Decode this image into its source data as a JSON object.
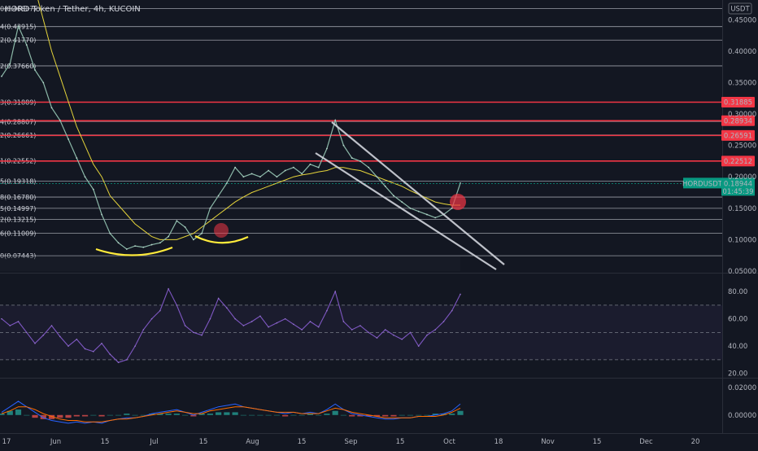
{
  "chart_data": {
    "type": "line",
    "title": "HORD Token / Tether, 4h, KUCOIN",
    "currency_badge": "USDT",
    "symbol_badge": "HORDUSDT",
    "current_price": "0.18944",
    "countdown": "01:45:39",
    "price_axis": {
      "ticks": [
        "0.45000",
        "0.40000",
        "0.35000",
        "0.30000",
        "0.25000",
        "0.20000",
        "0.15000",
        "0.10000",
        "0.05000"
      ],
      "ylim": [
        0.05,
        0.475
      ]
    },
    "fib_levels": [
      {
        "label": "0(0.46807)",
        "value": 0.46807
      },
      {
        "label": "4(0.43915)",
        "value": 0.43915
      },
      {
        "label": "2(0.41770)",
        "value": 0.4177
      },
      {
        "label": "2(0.37660)",
        "value": 0.3766
      },
      {
        "label": "3(0.31889)",
        "value": 0.31889
      },
      {
        "label": "4(0.28807)",
        "value": 0.28807
      },
      {
        "label": "2(0.26661)",
        "value": 0.26661
      },
      {
        "label": "1(0.22552)",
        "value": 0.22552
      },
      {
        "label": "5(0.19318)",
        "value": 0.19318
      },
      {
        "label": "8(0.16780)",
        "value": 0.1678
      },
      {
        "label": "5(0.14997)",
        "value": 0.14997
      },
      {
        "label": "2(0.13215)",
        "value": 0.13215
      },
      {
        "label": "6(0.11009)",
        "value": 0.11009
      },
      {
        "label": "0(0.07443)",
        "value": 0.07443
      }
    ],
    "red_levels": [
      {
        "label": "0.31885",
        "value": 0.31885
      },
      {
        "label": "0.28934",
        "value": 0.28934
      },
      {
        "label": "0.26591",
        "value": 0.26591
      },
      {
        "label": "0.22512",
        "value": 0.22512
      }
    ],
    "x_axis": {
      "ticks": [
        "17",
        "Jun",
        "15",
        "Jul",
        "15",
        "Aug",
        "15",
        "Sep",
        "15",
        "Oct",
        "18",
        "Nov",
        "15",
        "Dec",
        "20"
      ]
    },
    "series": [
      {
        "name": "price",
        "values": [
          0.36,
          0.38,
          0.44,
          0.41,
          0.37,
          0.35,
          0.31,
          0.29,
          0.26,
          0.23,
          0.2,
          0.18,
          0.14,
          0.11,
          0.095,
          0.085,
          0.09,
          0.088,
          0.092,
          0.095,
          0.105,
          0.13,
          0.12,
          0.1,
          0.11,
          0.15,
          0.17,
          0.19,
          0.215,
          0.2,
          0.205,
          0.2,
          0.21,
          0.2,
          0.21,
          0.215,
          0.205,
          0.22,
          0.215,
          0.245,
          0.29,
          0.25,
          0.23,
          0.225,
          0.215,
          0.2,
          0.185,
          0.17,
          0.16,
          0.15,
          0.145,
          0.14,
          0.135,
          0.14,
          0.15,
          0.19
        ]
      },
      {
        "name": "MA (yellow)",
        "values": [
          null,
          null,
          null,
          null,
          0.5,
          0.45,
          0.4,
          0.36,
          0.32,
          0.28,
          0.25,
          0.22,
          0.2,
          0.17,
          0.155,
          0.14,
          0.125,
          0.115,
          0.105,
          0.1,
          0.1,
          0.1,
          0.105,
          0.11,
          0.12,
          0.13,
          0.14,
          0.15,
          0.16,
          0.168,
          0.175,
          0.18,
          0.185,
          0.19,
          0.195,
          0.2,
          0.203,
          0.205,
          0.208,
          0.21,
          0.215,
          0.215,
          0.212,
          0.21,
          0.205,
          0.2,
          0.195,
          0.19,
          0.185,
          0.178,
          0.172,
          0.166,
          0.16,
          0.157,
          0.155,
          0.155
        ]
      }
    ],
    "rsi": {
      "ticks": [
        "80.00",
        "60.00",
        "40.00",
        "20.00"
      ],
      "ylim": [
        18,
        92
      ],
      "values": [
        60,
        55,
        58,
        50,
        42,
        48,
        55,
        47,
        40,
        45,
        38,
        36,
        42,
        34,
        28,
        30,
        40,
        52,
        60,
        66,
        82,
        70,
        55,
        50,
        48,
        60,
        75,
        68,
        60,
        55,
        58,
        62,
        54,
        57,
        60,
        56,
        52,
        58,
        54,
        66,
        80,
        58,
        52,
        55,
        50,
        46,
        52,
        48,
        45,
        50,
        40,
        48,
        52,
        58,
        66,
        78
      ]
    },
    "macd": {
      "ticks": [
        "0.02000",
        "0.00000"
      ],
      "ylim": [
        -0.012,
        0.026
      ],
      "macd": [
        0.002,
        0.006,
        0.01,
        0.006,
        0.002,
        -0.002,
        -0.004,
        -0.005,
        -0.006,
        -0.005,
        -0.006,
        -0.005,
        -0.006,
        -0.004,
        -0.003,
        -0.002,
        -0.002,
        -0.001,
        0.001,
        0.002,
        0.003,
        0.004,
        0.002,
        0.0,
        0.002,
        0.004,
        0.006,
        0.007,
        0.008,
        0.006,
        0.005,
        0.004,
        0.003,
        0.002,
        0.001,
        0.002,
        0.001,
        0.002,
        0.001,
        0.004,
        0.008,
        0.004,
        0.001,
        0.0,
        -0.001,
        -0.002,
        -0.003,
        -0.003,
        -0.002,
        -0.002,
        -0.001,
        -0.001,
        0.0,
        0.001,
        0.003,
        0.008
      ],
      "signal": [
        0.001,
        0.003,
        0.006,
        0.006,
        0.004,
        0.001,
        -0.001,
        -0.003,
        -0.004,
        -0.004,
        -0.005,
        -0.005,
        -0.005,
        -0.004,
        -0.003,
        -0.003,
        -0.002,
        -0.001,
        0.0,
        0.001,
        0.002,
        0.003,
        0.002,
        0.001,
        0.001,
        0.003,
        0.004,
        0.005,
        0.006,
        0.006,
        0.005,
        0.004,
        0.003,
        0.002,
        0.002,
        0.002,
        0.001,
        0.001,
        0.001,
        0.003,
        0.005,
        0.004,
        0.002,
        0.001,
        0.0,
        -0.001,
        -0.002,
        -0.002,
        -0.002,
        -0.002,
        -0.001,
        -0.001,
        -0.001,
        0.0,
        0.002,
        0.005
      ]
    }
  },
  "colors": {
    "background": "#131722",
    "grid": "#2a2e39",
    "fib_line": "#b2b5be",
    "red_level": "#f23645",
    "yellow_ma": "#e5d43a",
    "rsi_line": "#7e57c2",
    "macd_line": "#2962ff",
    "signal_line": "#ff6d00",
    "badge_teal": "#089981",
    "trend_channel": "#d1d4dc",
    "cup_arc": "#ffeb3b",
    "highlight_circle": "#f23645"
  }
}
